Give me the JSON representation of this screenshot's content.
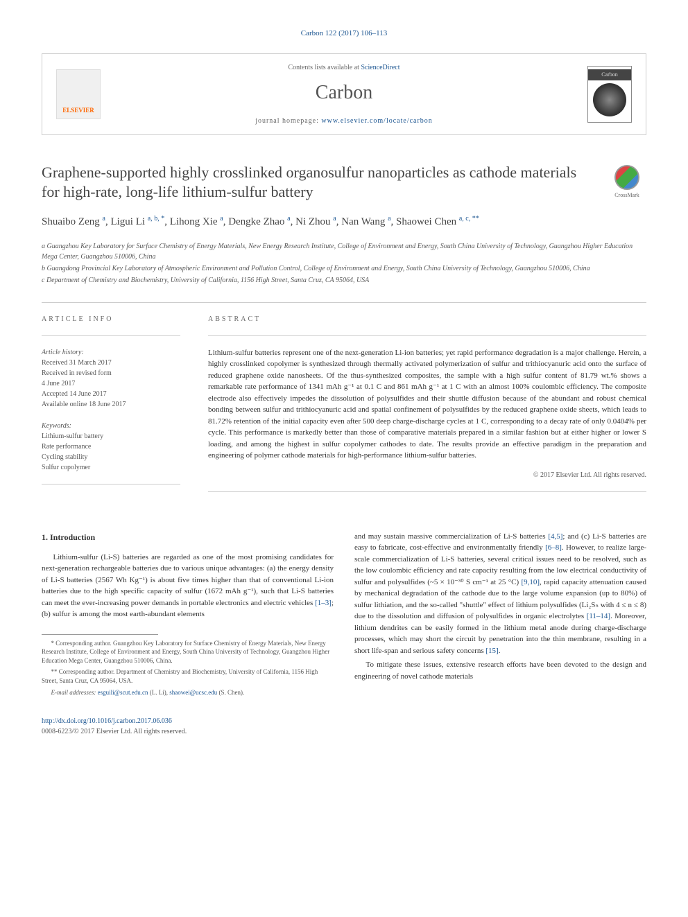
{
  "citation": "Carbon 122 (2017) 106–113",
  "banner": {
    "elsevier_label": "ELSEVIER",
    "contents_prefix": "Contents lists available at ",
    "contents_link": "ScienceDirect",
    "journal_name": "Carbon",
    "homepage_prefix": "journal homepage: ",
    "homepage_url": "www.elsevier.com/locate/carbon",
    "cover_label": "Carbon"
  },
  "crossmark_label": "CrossMark",
  "title": "Graphene-supported highly crosslinked organosulfur nanoparticles as cathode materials for high-rate, long-life lithium-sulfur battery",
  "authors_html": "Shuaibo Zeng <sup>a</sup>, Ligui Li <sup>a, b, *</sup>, Lihong Xie <sup>a</sup>, Dengke Zhao <sup>a</sup>, Ni Zhou <sup>a</sup>, Nan Wang <sup>a</sup>, Shaowei Chen <sup>a, c, **</sup>",
  "affiliations": [
    "a Guangzhou Key Laboratory for Surface Chemistry of Energy Materials, New Energy Research Institute, College of Environment and Energy, South China University of Technology, Guangzhou Higher Education Mega Center, Guangzhou 510006, China",
    "b Guangdong Provincial Key Laboratory of Atmospheric Environment and Pollution Control, College of Environment and Energy, South China University of Technology, Guangzhou 510006, China",
    "c Department of Chemistry and Biochemistry, University of California, 1156 High Street, Santa Cruz, CA 95064, USA"
  ],
  "info": {
    "label": "ARTICLE INFO",
    "history_label": "Article history:",
    "history": [
      "Received 31 March 2017",
      "Received in revised form",
      "4 June 2017",
      "Accepted 14 June 2017",
      "Available online 18 June 2017"
    ],
    "keywords_label": "Keywords:",
    "keywords": [
      "Lithium-sulfur battery",
      "Rate performance",
      "Cycling stability",
      "Sulfur copolymer"
    ]
  },
  "abstract": {
    "label": "ABSTRACT",
    "text": "Lithium-sulfur batteries represent one of the next-generation Li-ion batteries; yet rapid performance degradation is a major challenge. Herein, a highly crosslinked copolymer is synthesized through thermally activated polymerization of sulfur and trithiocyanuric acid onto the surface of reduced graphene oxide nanosheets. Of the thus-synthesized composites, the sample with a high sulfur content of 81.79 wt.% shows a remarkable rate performance of 1341 mAh g⁻¹ at 0.1 C and 861 mAh g⁻¹ at 1 C with an almost 100% coulombic efficiency. The composite electrode also effectively impedes the dissolution of polysulfides and their shuttle diffusion because of the abundant and robust chemical bonding between sulfur and trithiocyanuric acid and spatial confinement of polysulfides by the reduced graphene oxide sheets, which leads to 81.72% retention of the initial capacity even after 500 deep charge-discharge cycles at 1 C, corresponding to a decay rate of only 0.0404% per cycle. This performance is markedly better than those of comparative materials prepared in a similar fashion but at either higher or lower S loading, and among the highest in sulfur copolymer cathodes to date. The results provide an effective paradigm in the preparation and engineering of polymer cathode materials for high-performance lithium-sulfur batteries.",
    "copyright": "© 2017 Elsevier Ltd. All rights reserved."
  },
  "intro": {
    "heading": "1. Introduction",
    "col1_p1_a": "Lithium-sulfur (Li-S) batteries are regarded as one of the most promising candidates for next-generation rechargeable batteries due to various unique advantages: (a) the energy density of Li-S batteries (2567 Wh Kg⁻¹) is about five times higher than that of conventional Li-ion batteries due to the high specific capacity of sulfur (1672 mAh g⁻¹), such that Li-S batteries can meet the ever-increasing power demands in portable electronics and electric vehicles ",
    "ref_1_3": "[1–3]",
    "col1_p1_b": "; (b) sulfur is among the most earth-abundant elements",
    "col2_p1_a": "and may sustain massive commercialization of Li-S batteries ",
    "ref_4_5": "[4,5]",
    "col2_p1_b": "; and (c) Li-S batteries are easy to fabricate, cost-effective and environmentally friendly ",
    "ref_6_8": "[6–8]",
    "col2_p1_c": ". However, to realize large-scale commercialization of Li-S batteries, several critical issues need to be resolved, such as the low coulombic efficiency and rate capacity resulting from the low electrical conductivity of sulfur and polysulfides (~5 × 10⁻³⁰ S cm⁻¹ at 25 °C) ",
    "ref_9_10": "[9,10]",
    "col2_p1_d": ", rapid capacity attenuation caused by mechanical degradation of the cathode due to the large volume expansion (up to 80%) of sulfur lithiation, and the so-called \"shuttle\" effect of lithium polysulfides (Li₂Sₙ with 4 ≤ n ≤ 8) due to the dissolution and diffusion of polysulfides in organic electrolytes ",
    "ref_11_14": "[11–14]",
    "col2_p1_e": ". Moreover, lithium dendrites can be easily formed in the lithium metal anode during charge-discharge processes, which may short the circuit by penetration into the thin membrane, resulting in a short life-span and serious safety concerns ",
    "ref_15": "[15]",
    "col2_p1_f": ".",
    "col2_p2": "To mitigate these issues, extensive research efforts have been devoted to the design and engineering of novel cathode materials"
  },
  "footnotes": {
    "f1": "* Corresponding author. Guangzhou Key Laboratory for Surface Chemistry of Energy Materials, New Energy Research Institute, College of Environment and Energy, South China University of Technology, Guangzhou Higher Education Mega Center, Guangzhou 510006, China.",
    "f2": "** Corresponding author. Department of Chemistry and Biochemistry, University of California, 1156 High Street, Santa Cruz, CA 95064, USA.",
    "f3_label": "E-mail addresses: ",
    "f3_email1": "esguili@scut.edu.cn",
    "f3_mid1": " (L. Li), ",
    "f3_email2": "shaowei@ucsc.edu",
    "f3_mid2": " (S. Chen)."
  },
  "footer": {
    "doi": "http://dx.doi.org/10.1016/j.carbon.2017.06.036",
    "issn_line": "0008-6223/© 2017 Elsevier Ltd. All rights reserved."
  }
}
